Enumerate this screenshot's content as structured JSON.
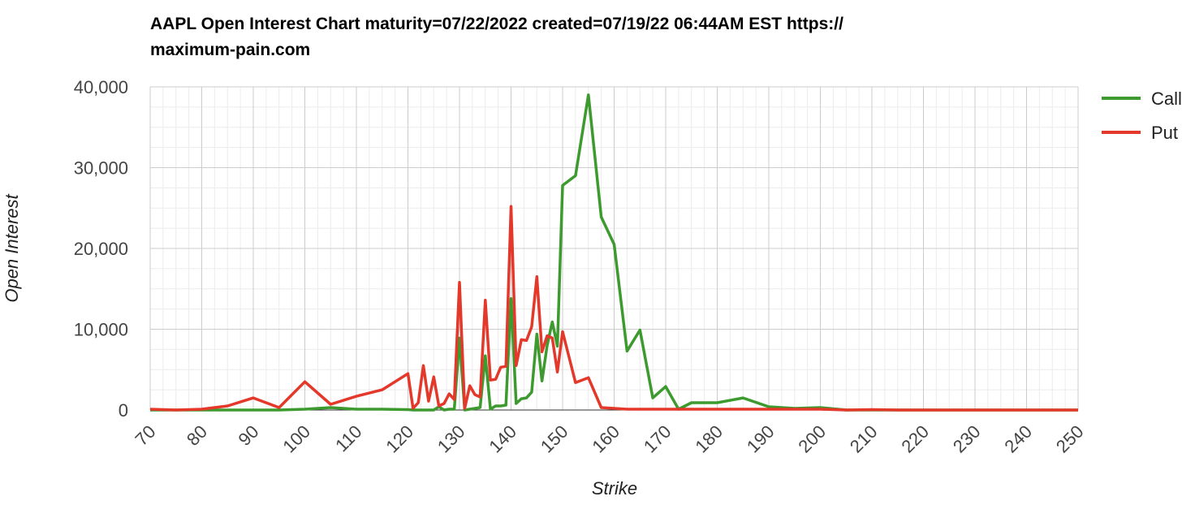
{
  "chart_data": {
    "type": "line",
    "title_line1": "AAPL Open Interest Chart maturity=07/22/2022 created=07/19/22 06:44AM EST https://",
    "title_line2": "maximum-pain.com",
    "xlabel": "Strike",
    "ylabel": "Open Interest",
    "xlim": [
      70,
      250
    ],
    "ylim": [
      0,
      40000
    ],
    "x_ticks": [
      "70",
      "80",
      "90",
      "100",
      "110",
      "120",
      "130",
      "140",
      "150",
      "160",
      "170",
      "180",
      "190",
      "200",
      "210",
      "220",
      "230",
      "240",
      "250"
    ],
    "y_ticks": [
      {
        "value": 0,
        "label": "0"
      },
      {
        "value": 10000,
        "label": "10,000"
      },
      {
        "value": 20000,
        "label": "20,000"
      },
      {
        "value": 30000,
        "label": "30,000"
      },
      {
        "value": 40000,
        "label": "40,000"
      }
    ],
    "grid": true,
    "legend_position": "top-right",
    "series": [
      {
        "name": "Call",
        "color": "#3c9a2e",
        "points": [
          [
            70,
            0
          ],
          [
            75,
            0
          ],
          [
            80,
            0
          ],
          [
            85,
            0
          ],
          [
            90,
            0
          ],
          [
            95,
            0
          ],
          [
            100,
            100
          ],
          [
            105,
            300
          ],
          [
            110,
            100
          ],
          [
            115,
            100
          ],
          [
            120,
            50
          ],
          [
            121,
            0
          ],
          [
            122,
            0
          ],
          [
            123,
            0
          ],
          [
            124,
            0
          ],
          [
            125,
            0
          ],
          [
            126,
            400
          ],
          [
            127,
            0
          ],
          [
            128,
            100
          ],
          [
            129,
            100
          ],
          [
            130,
            8900
          ],
          [
            131,
            0
          ],
          [
            132,
            100
          ],
          [
            133,
            200
          ],
          [
            134,
            300
          ],
          [
            135,
            6700
          ],
          [
            136,
            100
          ],
          [
            137,
            500
          ],
          [
            138,
            500
          ],
          [
            139,
            600
          ],
          [
            140,
            13800
          ],
          [
            141,
            800
          ],
          [
            142,
            1400
          ],
          [
            143,
            1500
          ],
          [
            144,
            2200
          ],
          [
            145,
            9400
          ],
          [
            146,
            3600
          ],
          [
            147,
            8000
          ],
          [
            148,
            10900
          ],
          [
            149,
            7900
          ],
          [
            150,
            27800
          ],
          [
            152.5,
            29000
          ],
          [
            155,
            39000
          ],
          [
            157.5,
            23900
          ],
          [
            160,
            20500
          ],
          [
            162.5,
            7300
          ],
          [
            165,
            9900
          ],
          [
            167.5,
            1500
          ],
          [
            170,
            2900
          ],
          [
            172.5,
            100
          ],
          [
            175,
            900
          ],
          [
            180,
            900
          ],
          [
            185,
            1500
          ],
          [
            190,
            400
          ],
          [
            195,
            200
          ],
          [
            200,
            300
          ],
          [
            205,
            0
          ],
          [
            210,
            0
          ],
          [
            215,
            0
          ],
          [
            220,
            0
          ],
          [
            225,
            0
          ],
          [
            230,
            0
          ],
          [
            235,
            0
          ],
          [
            240,
            0
          ],
          [
            245,
            0
          ],
          [
            250,
            0
          ]
        ]
      },
      {
        "name": "Put",
        "color": "#e3382a",
        "points": [
          [
            70,
            100
          ],
          [
            75,
            0
          ],
          [
            80,
            100
          ],
          [
            85,
            500
          ],
          [
            90,
            1500
          ],
          [
            95,
            300
          ],
          [
            100,
            3500
          ],
          [
            105,
            700
          ],
          [
            110,
            1700
          ],
          [
            115,
            2500
          ],
          [
            120,
            4500
          ],
          [
            121,
            200
          ],
          [
            122,
            900
          ],
          [
            123,
            5500
          ],
          [
            124,
            1100
          ],
          [
            125,
            4100
          ],
          [
            126,
            500
          ],
          [
            127,
            800
          ],
          [
            128,
            2000
          ],
          [
            129,
            1300
          ],
          [
            130,
            15800
          ],
          [
            131,
            200
          ],
          [
            132,
            3000
          ],
          [
            133,
            1900
          ],
          [
            134,
            1600
          ],
          [
            135,
            13600
          ],
          [
            136,
            3700
          ],
          [
            137,
            3800
          ],
          [
            138,
            5300
          ],
          [
            139,
            5400
          ],
          [
            140,
            25200
          ],
          [
            141,
            5500
          ],
          [
            142,
            8700
          ],
          [
            143,
            8600
          ],
          [
            144,
            10300
          ],
          [
            145,
            16500
          ],
          [
            146,
            7200
          ],
          [
            147,
            9200
          ],
          [
            148,
            8900
          ],
          [
            149,
            4700
          ],
          [
            150,
            9700
          ],
          [
            152.5,
            3400
          ],
          [
            155,
            4000
          ],
          [
            157.5,
            300
          ],
          [
            160,
            200
          ],
          [
            162.5,
            100
          ],
          [
            165,
            100
          ],
          [
            167.5,
            100
          ],
          [
            170,
            100
          ],
          [
            172.5,
            100
          ],
          [
            175,
            100
          ],
          [
            180,
            100
          ],
          [
            185,
            100
          ],
          [
            190,
            100
          ],
          [
            195,
            100
          ],
          [
            200,
            100
          ],
          [
            205,
            0
          ],
          [
            210,
            50
          ],
          [
            215,
            0
          ],
          [
            220,
            0
          ],
          [
            225,
            0
          ],
          [
            230,
            0
          ],
          [
            235,
            0
          ],
          [
            240,
            0
          ],
          [
            245,
            0
          ],
          [
            250,
            0
          ]
        ]
      }
    ]
  }
}
